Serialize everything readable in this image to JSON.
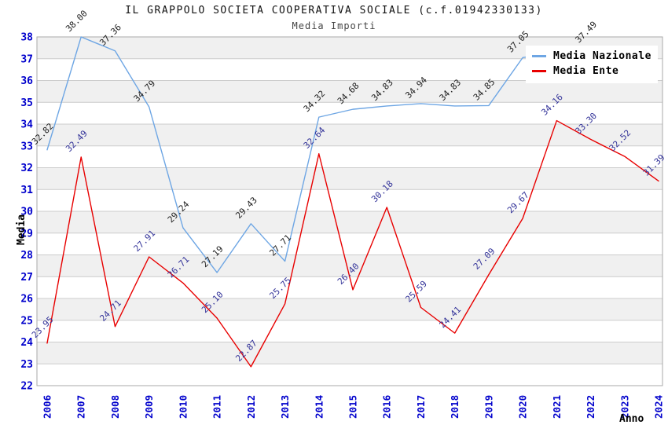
{
  "header": {
    "title": "IL GRAPPOLO SOCIETA COOPERATIVA SOCIALE (c.f.01942330133)",
    "subtitle": "Media Importi"
  },
  "legend": {
    "position": "top-right",
    "items": [
      {
        "label": "Media Nazionale",
        "color": "#6EA6E4"
      },
      {
        "label": "Media Ente",
        "color": "#E80000"
      }
    ]
  },
  "colors": {
    "axis_tick_label": "#0000CC",
    "national_series_line": "#6EA6E4",
    "national_data_label": "#222222",
    "ente_series_line": "#E80000",
    "ente_data_label": "#333399",
    "band_gray": "#F0F0F0",
    "band_white": "#FFFFFF",
    "gridline": "#CCCCCC",
    "plot_border": "#AAAAAA",
    "axis_title": "#000000"
  },
  "chart_data": {
    "type": "line",
    "title": "IL GRAPPOLO SOCIETA COOPERATIVA SOCIALE (c.f.01942330133)",
    "subtitle": "Media Importi",
    "xlabel": "Anno",
    "ylabel": "Media",
    "ylim": [
      22,
      38
    ],
    "y_tick_step": 1,
    "grid": "horizontal-gridlines-with-alternating-bands",
    "legend_position": "top-right",
    "x": [
      2006,
      2007,
      2008,
      2009,
      2010,
      2011,
      2012,
      2013,
      2014,
      2015,
      2016,
      2017,
      2018,
      2019,
      2020,
      2021,
      2022,
      2023,
      2024
    ],
    "series": [
      {
        "name": "Media Nazionale",
        "color": "#6EA6E4",
        "label_color": "#222222",
        "values": [
          32.82,
          38.0,
          37.36,
          34.79,
          29.24,
          27.19,
          29.43,
          27.71,
          34.32,
          34.68,
          34.83,
          34.94,
          34.83,
          34.85,
          37.05,
          null,
          37.49,
          null,
          null
        ]
      },
      {
        "name": "Media Ente",
        "color": "#E80000",
        "label_color": "#333399",
        "values": [
          23.95,
          32.49,
          24.71,
          27.91,
          26.71,
          25.1,
          22.87,
          25.75,
          32.64,
          26.4,
          30.18,
          25.59,
          24.41,
          27.09,
          29.67,
          34.16,
          33.3,
          32.52,
          31.39
        ]
      }
    ]
  }
}
